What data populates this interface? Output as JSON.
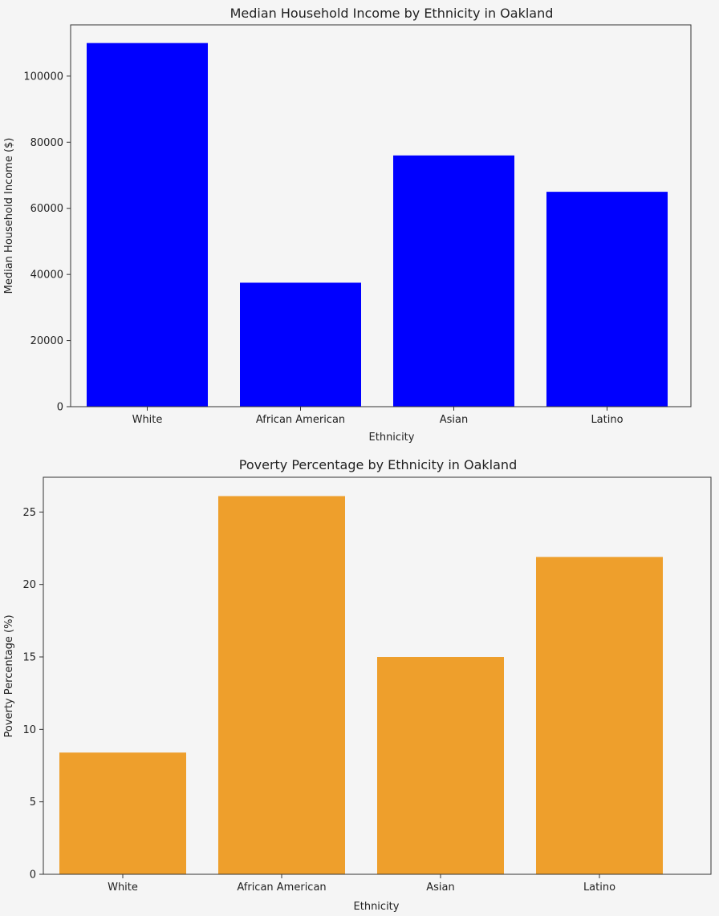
{
  "chart_data": [
    {
      "type": "bar",
      "title": "Median Household Income by Ethnicity in Oakland",
      "xlabel": "Ethnicity",
      "ylabel": "Median Household Income ($)",
      "categories": [
        "White",
        "African American",
        "Asian",
        "Latino"
      ],
      "values": [
        110000,
        37500,
        76000,
        65000
      ],
      "ylim": [
        0,
        115500
      ],
      "yticks": [
        0,
        20000,
        40000,
        60000,
        80000,
        100000
      ],
      "color": "#0000ff",
      "grid": false
    },
    {
      "type": "bar",
      "title": "Poverty Percentage by Ethnicity in Oakland",
      "xlabel": "Ethnicity",
      "ylabel": "Poverty Percentage (%)",
      "categories": [
        "White",
        "African American",
        "Asian",
        "Latino"
      ],
      "values": [
        8.4,
        26.1,
        15.0,
        21.9
      ],
      "ylim": [
        0,
        27.4
      ],
      "yticks": [
        0,
        5,
        10,
        15,
        20,
        25
      ],
      "color": "#ee9f2c",
      "grid": false
    }
  ]
}
